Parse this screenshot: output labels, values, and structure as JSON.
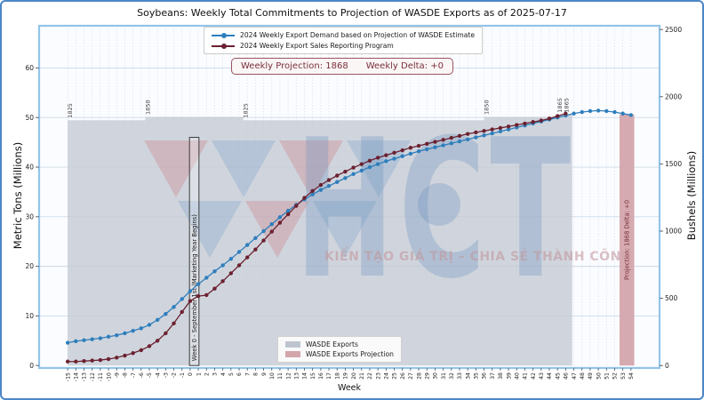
{
  "figure": {
    "border_color": "#4b86c8"
  },
  "chart_data": {
    "type": "line",
    "title": "Soybeans: Weekly Total Commitments to Projection of WASDE Exports as of 2025-07-17",
    "x_label": "Week",
    "y_left_label": "Metric Tons (Millions)",
    "y_right_label": "Bushels (Millions)",
    "x_ticks": {
      "min": -15,
      "max": 54,
      "step": 1
    },
    "y_left_ticks": [
      0,
      10,
      20,
      30,
      40,
      50,
      60
    ],
    "y_right_ticks": [
      0,
      500,
      1000,
      1500,
      2000,
      2500
    ],
    "x_range": [
      -18.5,
      57.5
    ],
    "y_range": [
      -0.5,
      68.5
    ],
    "bushels_per_ton": 36.9,
    "grid": true,
    "legend_position": "upper center",
    "series": [
      {
        "name": "2024 Weekly Export Demand based on Projection of WASDE Estimate",
        "color": "#2e7ebc",
        "week_start": -15,
        "values": [
          4.6,
          4.9,
          5.1,
          5.3,
          5.5,
          5.8,
          6.1,
          6.5,
          7.0,
          7.5,
          8.2,
          9.2,
          10.4,
          11.8,
          13.4,
          15.0,
          16.4,
          17.7,
          19.0,
          20.2,
          21.5,
          22.9,
          24.3,
          25.7,
          27.1,
          28.5,
          29.9,
          31.2,
          32.4,
          33.5,
          34.5,
          35.4,
          36.2,
          37.0,
          37.8,
          38.6,
          39.3,
          40.0,
          40.6,
          41.2,
          41.7,
          42.2,
          42.7,
          43.2,
          43.6,
          44.0,
          44.4,
          44.8,
          45.2,
          45.6,
          46.0,
          46.4,
          46.8,
          47.2,
          47.6,
          48.0,
          48.4,
          48.8,
          49.2,
          49.6,
          50.0,
          50.4,
          50.8,
          51.1,
          51.3,
          51.4,
          51.3,
          51.1,
          50.8,
          50.5
        ]
      },
      {
        "name": "2024 Weekly Export Sales Reporting Program",
        "color": "#6b2130",
        "week_start": -15,
        "values": [
          0.8,
          0.8,
          0.9,
          1.0,
          1.1,
          1.3,
          1.6,
          2.0,
          2.5,
          3.1,
          3.9,
          5.0,
          6.5,
          8.5,
          10.8,
          13.0,
          14.0,
          14.2,
          15.5,
          17.0,
          18.6,
          20.2,
          21.8,
          23.4,
          25.2,
          27.0,
          28.8,
          30.5,
          32.2,
          33.8,
          35.2,
          36.4,
          37.4,
          38.3,
          39.1,
          39.9,
          40.6,
          41.3,
          41.9,
          42.4,
          42.9,
          43.4,
          43.9,
          44.3,
          44.7,
          45.1,
          45.5,
          45.9,
          46.3,
          46.7,
          47.0,
          47.3,
          47.6,
          47.9,
          48.2,
          48.5,
          48.8,
          49.1,
          49.4,
          49.8,
          50.3,
          50.8
        ]
      }
    ],
    "wasde_steps": {
      "label": "WASDE Exports",
      "color": "#c6cbd5",
      "weeks": [
        -15,
        -5.5,
        6.5,
        36,
        45,
        45.8
      ],
      "bushels": [
        1825,
        1850,
        1825,
        1850,
        1865,
        1865
      ],
      "end_week": 46.8
    },
    "projection_bar": {
      "label": "WASDE Exports Projection",
      "color": "#d3a5ac",
      "week_start": 52.6,
      "week_end": 54.4,
      "bushels": 1868,
      "bar_text": "Projection: 1868   Delta: +0"
    }
  },
  "banner": {
    "projection": "Weekly Projection: 1868",
    "delta": "Weekly Delta: +0"
  },
  "annotations": {
    "week0": "Week 0 - September 1st (Marketing Year Begins)"
  },
  "legend_bottom": [
    {
      "label": "WASDE Exports",
      "color": "#bfc5d0"
    },
    {
      "label": "WASDE Exports Projection",
      "color": "#d3a5ac"
    }
  ],
  "watermark": {
    "text": "HCT",
    "slogan": "KIẾN TẠO GIÁ TRỊ – CHIA SẺ THÀNH CÔNG",
    "logo_blue": "#6f9cc9",
    "logo_red": "#c86a74",
    "text_color": "rgba(104,143,188,0.30)",
    "slogan_color": "rgba(193,152,158,0.60)"
  }
}
